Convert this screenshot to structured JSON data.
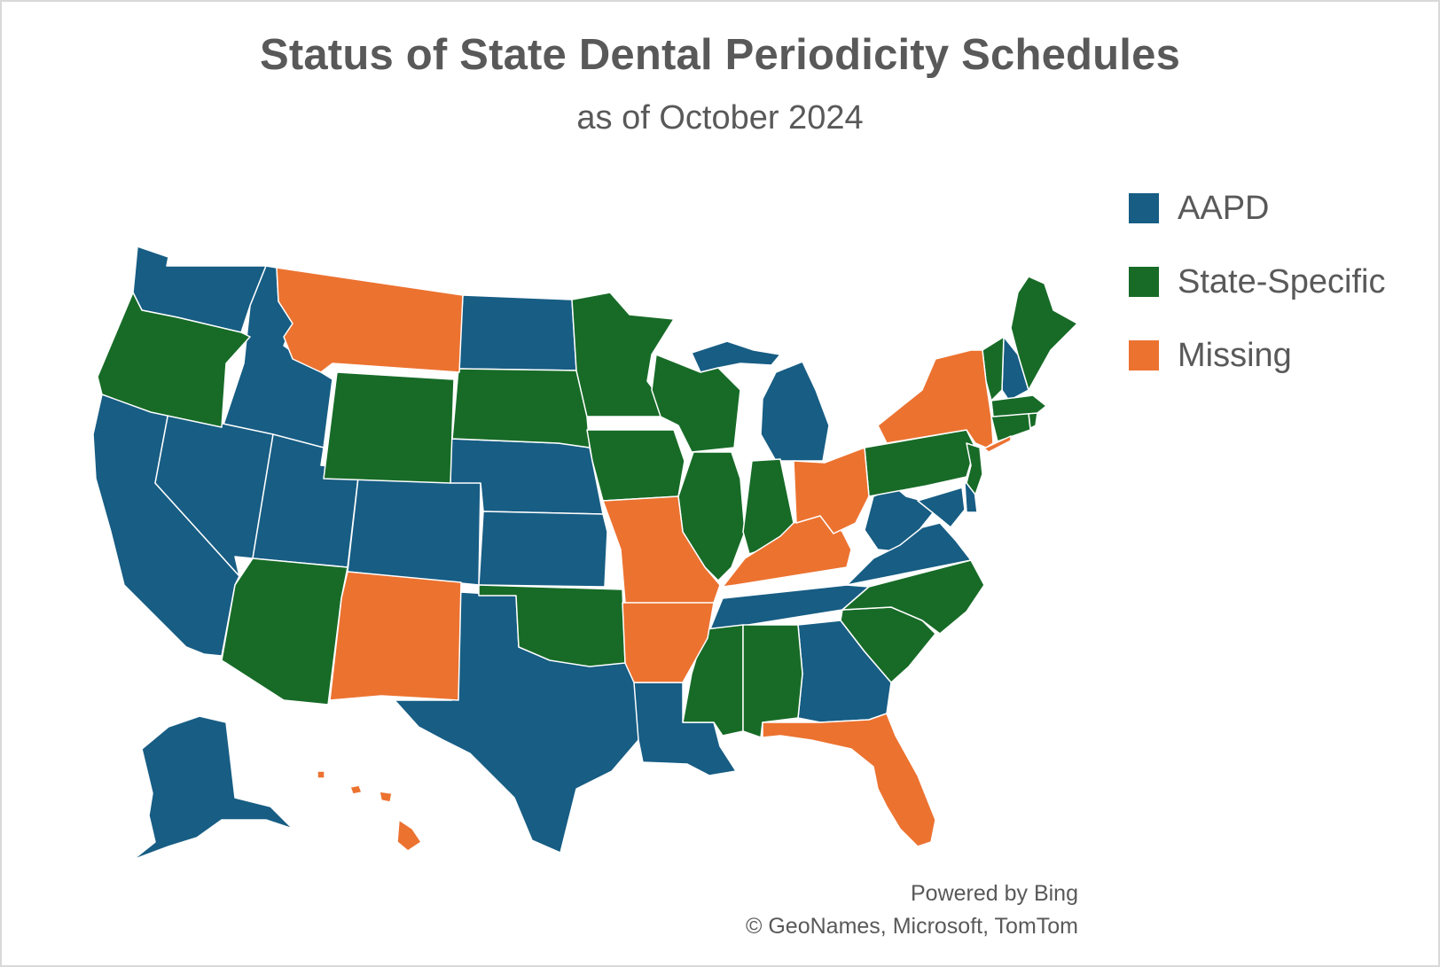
{
  "title": "Status of State Dental Periodicity Schedules",
  "subtitle": "as of October 2024",
  "legend": [
    {
      "label": "AAPD",
      "color": "#175d84"
    },
    {
      "label": "State-Specific",
      "color": "#176b27"
    },
    {
      "label": "Missing",
      "color": "#ec7230"
    }
  ],
  "credits": {
    "line1": "Powered by Bing",
    "line2": "© GeoNames, Microsoft, TomTom"
  },
  "state_status": {
    "AAPD": [
      "Washington",
      "Idaho",
      "California",
      "Nevada",
      "Utah",
      "Colorado",
      "North Dakota",
      "Nebraska",
      "Kansas",
      "Texas",
      "Louisiana",
      "Tennessee",
      "Georgia",
      "Michigan",
      "West Virginia",
      "Virginia",
      "Maryland",
      "Delaware",
      "New Hampshire",
      "Alaska"
    ],
    "State-Specific": [
      "Oregon",
      "Wyoming",
      "South Dakota",
      "Minnesota",
      "Iowa",
      "Wisconsin",
      "Illinois",
      "Indiana",
      "Oklahoma",
      "Arizona",
      "Mississippi",
      "Alabama",
      "South Carolina",
      "North Carolina",
      "Pennsylvania",
      "New Jersey",
      "Connecticut",
      "Rhode Island",
      "Massachusetts",
      "Vermont",
      "Maine"
    ],
    "Missing": [
      "Montana",
      "New Mexico",
      "Missouri",
      "Arkansas",
      "Kentucky",
      "Ohio",
      "New York",
      "Florida",
      "Hawaii"
    ]
  }
}
